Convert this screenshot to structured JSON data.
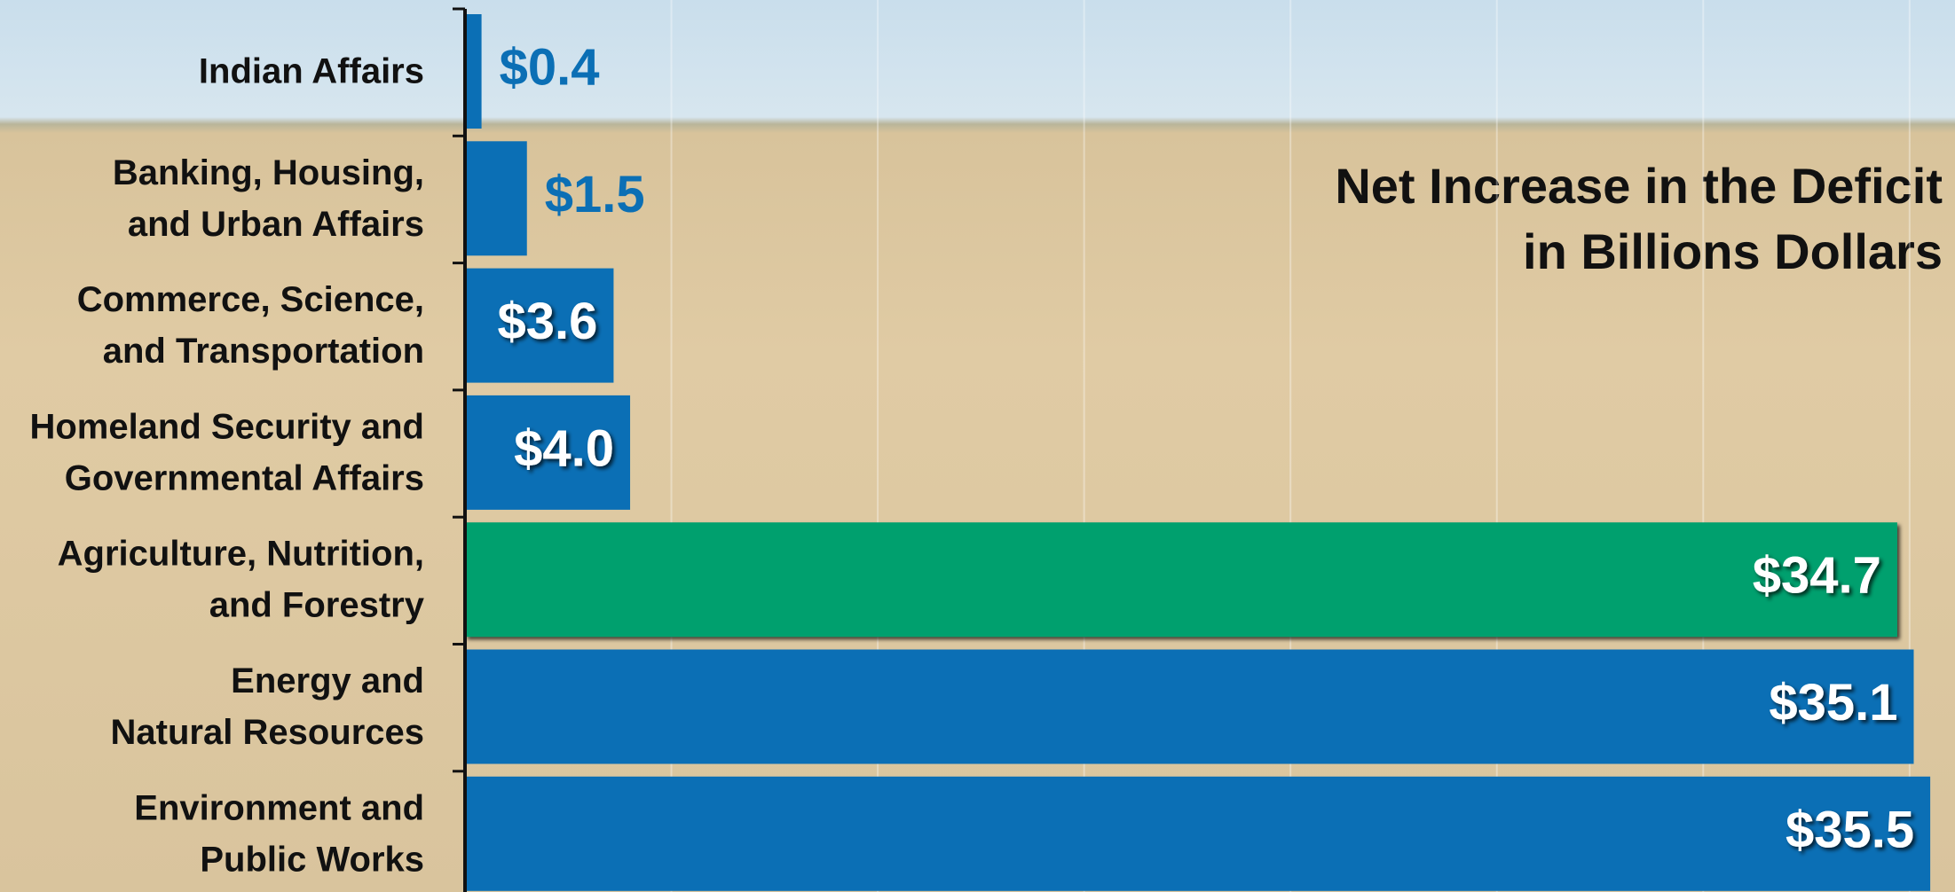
{
  "chart_data": {
    "type": "bar",
    "orientation": "horizontal",
    "title": "Net Increase in the Deficit\nin Billions Dollars",
    "categories": [
      "Indian Affairs",
      "Banking, Housing,\nand Urban Affairs",
      "Commerce, Science,\nand Transportation",
      "Homeland Security and\nGovernmental Affairs",
      "Agriculture, Nutrition,\nand Forestry",
      "Energy and\nNatural Resources",
      "Environment and\nPublic Works"
    ],
    "values": [
      0.4,
      1.5,
      3.6,
      4.0,
      34.7,
      35.1,
      35.5
    ],
    "value_labels": [
      "$0.4",
      "$1.5",
      "$3.6",
      "$4.0",
      "$34.7",
      "$35.1",
      "$35.5"
    ],
    "colors": [
      "#0b6fb5",
      "#0b6fb5",
      "#0b6fb5",
      "#0b6fb5",
      "#00a06e",
      "#0b6fb5",
      "#0b6fb5"
    ],
    "xlim": [
      0,
      36.1
    ],
    "xticks": [
      5,
      10,
      15,
      20,
      25,
      30,
      35
    ],
    "grid": true
  }
}
